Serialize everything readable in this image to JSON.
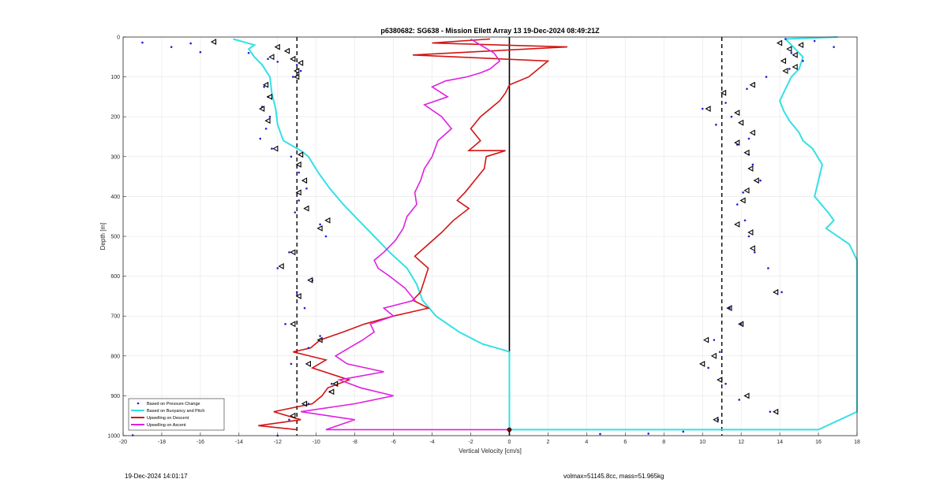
{
  "chart_data": {
    "type": "line",
    "title": "p6380682: SG638 - Mission Ellett Array 13 19-Dec-2024 08:49:21Z",
    "xlabel": "Vertical Velocity [cm/s]",
    "ylabel": "Depth [m]",
    "xlim": [
      -20,
      18
    ],
    "ylim": [
      0,
      1000
    ],
    "y_reversed": true,
    "grid": true,
    "legend_position": "bottom-left",
    "xticks": [
      -20,
      -18,
      -16,
      -14,
      -12,
      -10,
      -8,
      -6,
      -4,
      -2,
      0,
      2,
      4,
      6,
      8,
      10,
      12,
      14,
      16,
      18
    ],
    "yticks": [
      0,
      100,
      200,
      300,
      400,
      500,
      600,
      700,
      800,
      900,
      1000
    ],
    "reference_lines": [
      {
        "type": "vertical",
        "x": -11,
        "style": "dashed",
        "color": "#000000"
      },
      {
        "type": "vertical",
        "x": 11,
        "style": "dashed",
        "color": "#000000"
      },
      {
        "type": "vertical",
        "x": 0,
        "style": "solid",
        "color": "#000000"
      }
    ],
    "series": [
      {
        "name": "Based on Pressure Change",
        "style": "markers",
        "color": "#1f1fd6",
        "points_descent": [
          [
            -19,
            14
          ],
          [
            -16.5,
            16
          ],
          [
            -17.5,
            25
          ],
          [
            -16,
            38
          ],
          [
            -13.5,
            40
          ],
          [
            -12.5,
            55
          ],
          [
            -12,
            62
          ],
          [
            -11,
            70
          ],
          [
            -10.8,
            85
          ],
          [
            -11.2,
            100
          ],
          [
            -12.7,
            125
          ],
          [
            -12.5,
            150
          ],
          [
            -12.8,
            175
          ],
          [
            -12.4,
            200
          ],
          [
            -12.6,
            230
          ],
          [
            -12.9,
            255
          ],
          [
            -12.3,
            280
          ],
          [
            -11.3,
            300
          ],
          [
            -10.9,
            340
          ],
          [
            -10.5,
            380
          ],
          [
            -10.9,
            410
          ],
          [
            -11.1,
            440
          ],
          [
            -9.8,
            470
          ],
          [
            -9.5,
            500
          ],
          [
            -11.4,
            540
          ],
          [
            -12,
            580
          ],
          [
            -10.2,
            610
          ],
          [
            -11,
            640
          ],
          [
            -10.6,
            680
          ],
          [
            -11.6,
            720
          ],
          [
            -9.8,
            750
          ],
          [
            -10.4,
            780
          ],
          [
            -11.3,
            820
          ],
          [
            -9.2,
            870
          ],
          [
            -9.3,
            890
          ],
          [
            -10.4,
            920
          ],
          [
            -11.4,
            960
          ]
        ],
        "points_ascent": [
          [
            14.3,
            5
          ],
          [
            15.8,
            10
          ],
          [
            16.8,
            25
          ],
          [
            14.6,
            40
          ],
          [
            15.2,
            60
          ],
          [
            14.5,
            80
          ],
          [
            13.3,
            100
          ],
          [
            12.3,
            130
          ],
          [
            11.2,
            165
          ],
          [
            10,
            180
          ],
          [
            11.5,
            200
          ],
          [
            10.7,
            220
          ],
          [
            12.4,
            255
          ],
          [
            11.8,
            270
          ],
          [
            12.4,
            295
          ],
          [
            12.6,
            320
          ],
          [
            13,
            360
          ],
          [
            12.1,
            390
          ],
          [
            11.8,
            420
          ],
          [
            12.2,
            460
          ],
          [
            12.4,
            500
          ],
          [
            12.7,
            540
          ],
          [
            13.4,
            580
          ],
          [
            14.1,
            640
          ],
          [
            11.4,
            680
          ],
          [
            12,
            720
          ],
          [
            10.6,
            760
          ],
          [
            10.9,
            790
          ],
          [
            10.3,
            830
          ],
          [
            11.2,
            870
          ],
          [
            11.9,
            910
          ],
          [
            13.5,
            940
          ],
          [
            10.8,
            960
          ]
        ],
        "outlier_points": [
          [
            4.7,
            996
          ],
          [
            7.2,
            995
          ],
          [
            9,
            990
          ],
          [
            -19.5,
            999
          ],
          [
            -12,
            1000
          ]
        ]
      },
      {
        "name": "Based on Buoyancy and Pitch",
        "style": "line",
        "color": "#33e0e6",
        "descent": [
          [
            -14.3,
            5
          ],
          [
            -13.2,
            20
          ],
          [
            -13.5,
            30
          ],
          [
            -13.2,
            50
          ],
          [
            -12.8,
            70
          ],
          [
            -12.4,
            100
          ],
          [
            -12.3,
            140
          ],
          [
            -12.1,
            180
          ],
          [
            -12,
            220
          ],
          [
            -11.7,
            260
          ],
          [
            -10.8,
            285
          ],
          [
            -10.4,
            300
          ],
          [
            -9.9,
            340
          ],
          [
            -9.3,
            380
          ],
          [
            -8.6,
            420
          ],
          [
            -7.8,
            460
          ],
          [
            -7,
            500
          ],
          [
            -6.2,
            540
          ],
          [
            -5.3,
            580
          ],
          [
            -4.8,
            620
          ],
          [
            -4.5,
            660
          ],
          [
            -3.8,
            700
          ],
          [
            -2.6,
            740
          ],
          [
            -1.4,
            770
          ],
          [
            -0.3,
            785
          ],
          [
            0,
            790
          ],
          [
            0,
            985
          ]
        ],
        "ascent": [
          [
            17,
            0
          ],
          [
            14.3,
            5
          ],
          [
            14.7,
            25
          ],
          [
            15.2,
            50
          ],
          [
            15,
            80
          ],
          [
            14.6,
            100
          ],
          [
            14.3,
            130
          ],
          [
            14,
            160
          ],
          [
            14.2,
            185
          ],
          [
            14.5,
            210
          ],
          [
            15,
            240
          ],
          [
            15.2,
            260
          ],
          [
            15.7,
            280
          ],
          [
            16.2,
            320
          ],
          [
            16,
            360
          ],
          [
            15.8,
            400
          ],
          [
            16.5,
            440
          ],
          [
            16.8,
            460
          ],
          [
            16.4,
            480
          ],
          [
            17.6,
            520
          ],
          [
            18,
            560
          ],
          [
            18,
            600
          ],
          [
            18,
            640
          ],
          [
            18,
            680
          ],
          [
            18,
            720
          ],
          [
            18,
            760
          ],
          [
            18,
            800
          ],
          [
            18,
            860
          ],
          [
            18,
            900
          ],
          [
            18,
            940
          ],
          [
            16,
            985
          ],
          [
            0,
            985
          ]
        ]
      },
      {
        "name": "Upwelling on Descent",
        "style": "line",
        "color": "#d41414",
        "values": [
          [
            -1,
            5
          ],
          [
            -4,
            15
          ],
          [
            3,
            25
          ],
          [
            -5,
            45
          ],
          [
            2,
            60
          ],
          [
            1.5,
            80
          ],
          [
            1,
            100
          ],
          [
            0,
            120
          ],
          [
            -0.2,
            140
          ],
          [
            -0.5,
            160
          ],
          [
            -1,
            180
          ],
          [
            -1.5,
            200
          ],
          [
            -2,
            230
          ],
          [
            -1.5,
            260
          ],
          [
            -2.1,
            285
          ],
          [
            -0.2,
            285
          ],
          [
            -1.2,
            300
          ],
          [
            -1.3,
            330
          ],
          [
            -1.8,
            360
          ],
          [
            -2.3,
            390
          ],
          [
            -2.7,
            410
          ],
          [
            -2.1,
            430
          ],
          [
            -2.9,
            460
          ],
          [
            -3.5,
            490
          ],
          [
            -4.2,
            520
          ],
          [
            -4.9,
            550
          ],
          [
            -4.2,
            580
          ],
          [
            -4.4,
            610
          ],
          [
            -4.6,
            640
          ],
          [
            -5,
            660
          ],
          [
            -4.2,
            680
          ],
          [
            -6,
            700
          ],
          [
            -7.5,
            720
          ],
          [
            -8.6,
            740
          ],
          [
            -9.8,
            760
          ],
          [
            -10.3,
            780
          ],
          [
            -11.2,
            790
          ],
          [
            -9.5,
            810
          ],
          [
            -10.2,
            830
          ],
          [
            -8.3,
            860
          ],
          [
            -9.4,
            880
          ],
          [
            -9.7,
            900
          ],
          [
            -10.2,
            920
          ],
          [
            -12.2,
            940
          ],
          [
            -10.8,
            960
          ],
          [
            -13,
            975
          ],
          [
            -11,
            985
          ]
        ]
      },
      {
        "name": "Upwelling on Ascent",
        "style": "line",
        "color": "#e01fe0",
        "values": [
          [
            -2,
            5
          ],
          [
            -1.5,
            20
          ],
          [
            -0.8,
            40
          ],
          [
            -0.5,
            60
          ],
          [
            -1,
            80
          ],
          [
            -1.5,
            90
          ],
          [
            -2.2,
            100
          ],
          [
            -3.3,
            110
          ],
          [
            -4,
            125
          ],
          [
            -3.2,
            150
          ],
          [
            -4.4,
            170
          ],
          [
            -3.5,
            200
          ],
          [
            -3,
            230
          ],
          [
            -3.7,
            260
          ],
          [
            -4,
            300
          ],
          [
            -4.4,
            330
          ],
          [
            -4.6,
            360
          ],
          [
            -4.9,
            390
          ],
          [
            -4.8,
            420
          ],
          [
            -5.3,
            450
          ],
          [
            -5.5,
            480
          ],
          [
            -5.9,
            510
          ],
          [
            -6.5,
            540
          ],
          [
            -7,
            560
          ],
          [
            -6.8,
            580
          ],
          [
            -6.2,
            600
          ],
          [
            -5.4,
            630
          ],
          [
            -4.9,
            660
          ],
          [
            -6.5,
            680
          ],
          [
            -6,
            700
          ],
          [
            -7.2,
            720
          ],
          [
            -7,
            740
          ],
          [
            -7.6,
            760
          ],
          [
            -8.3,
            780
          ],
          [
            -9,
            800
          ],
          [
            -8.4,
            820
          ],
          [
            -6.5,
            840
          ],
          [
            -8.8,
            860
          ],
          [
            -7.7,
            880
          ],
          [
            -6,
            900
          ],
          [
            -8,
            920
          ],
          [
            -10.8,
            940
          ],
          [
            -8,
            960
          ],
          [
            -9.5,
            985
          ],
          [
            0,
            985
          ]
        ]
      }
    ],
    "triangle_markers_descent": [
      [
        -15.3,
        12
      ],
      [
        -12,
        25
      ],
      [
        -11.5,
        35
      ],
      [
        -12.3,
        50
      ],
      [
        -11.2,
        55
      ],
      [
        -10.8,
        65
      ],
      [
        -11,
        85
      ],
      [
        -11,
        100
      ],
      [
        -12.6,
        120
      ],
      [
        -12.4,
        150
      ],
      [
        -12.8,
        180
      ],
      [
        -12.5,
        210
      ],
      [
        -12.1,
        280
      ],
      [
        -10.8,
        295
      ],
      [
        -10.9,
        320
      ],
      [
        -10.6,
        360
      ],
      [
        -10.9,
        390
      ],
      [
        -10.5,
        430
      ],
      [
        -9.4,
        460
      ],
      [
        -9.8,
        480
      ],
      [
        -11.2,
        540
      ],
      [
        -11.8,
        575
      ],
      [
        -10.3,
        610
      ],
      [
        -10.9,
        650
      ],
      [
        -11.2,
        720
      ],
      [
        -9.8,
        760
      ],
      [
        -10.4,
        820
      ],
      [
        -9,
        870
      ],
      [
        -9.2,
        890
      ],
      [
        -10.6,
        920
      ],
      [
        -11.2,
        950
      ]
    ],
    "triangle_markers_ascent": [
      [
        14,
        15
      ],
      [
        15.1,
        20
      ],
      [
        14.5,
        30
      ],
      [
        14.8,
        45
      ],
      [
        14.2,
        60
      ],
      [
        14.8,
        75
      ],
      [
        14.3,
        85
      ],
      [
        12.6,
        120
      ],
      [
        11.1,
        140
      ],
      [
        10.3,
        180
      ],
      [
        11.8,
        190
      ],
      [
        12,
        215
      ],
      [
        12.6,
        240
      ],
      [
        11.8,
        265
      ],
      [
        12.3,
        290
      ],
      [
        12.5,
        330
      ],
      [
        12.8,
        360
      ],
      [
        12.3,
        385
      ],
      [
        12.1,
        410
      ],
      [
        11.8,
        470
      ],
      [
        12.5,
        490
      ],
      [
        12.6,
        530
      ],
      [
        13.8,
        640
      ],
      [
        11.4,
        680
      ],
      [
        12,
        720
      ],
      [
        10.2,
        760
      ],
      [
        10.6,
        800
      ],
      [
        10,
        820
      ],
      [
        10.9,
        860
      ],
      [
        12.3,
        900
      ],
      [
        13.8,
        940
      ],
      [
        10.7,
        960
      ]
    ],
    "bottom_point": [
      0,
      985
    ]
  },
  "footer": {
    "timestamp": "19-Dec-2024 14:01:17",
    "vol_mass": "volmax=51145.8cc, mass=51.965kg"
  }
}
